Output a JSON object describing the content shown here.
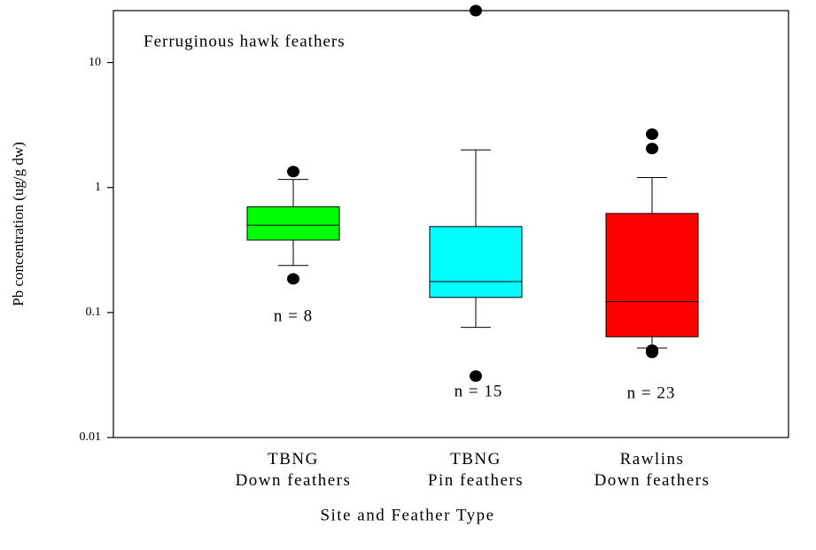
{
  "chart_data": {
    "type": "box",
    "y_label": "Pb concentration (ug/g dw)",
    "x_label": "Site and Feather Type",
    "categories": [
      "TBNG\nDown feathers",
      "TBNG\nPin feathers",
      "Rawlins\nDown feathers"
    ],
    "colors": [
      "#00ff00",
      "#00ffff",
      "#ff0000"
    ],
    "boxes": [
      {
        "whisker_low": 0.238,
        "q1": 0.38,
        "median": 0.5,
        "q3": 0.7,
        "whisker_high": 1.16,
        "outliers": [
          1.34,
          0.186
        ]
      },
      {
        "whisker_low": 0.076,
        "q1": 0.132,
        "median": 0.177,
        "q3": 0.487,
        "whisker_high": 2.0,
        "outliers": [
          0.031,
          26
        ]
      },
      {
        "whisker_low": 0.052,
        "q1": 0.064,
        "median": 0.122,
        "q3": 0.62,
        "whisker_high": 1.2,
        "outliers": [
          2.67,
          2.05,
          0.05,
          0.048
        ]
      }
    ],
    "annotations": [
      "Ferruginous hawk feathers",
      "n = 8",
      "n = 15",
      "n = 23"
    ],
    "ylim": [
      0.01,
      26
    ],
    "yticks": [
      0.01,
      0.1,
      1,
      10
    ],
    "log_y": true
  }
}
